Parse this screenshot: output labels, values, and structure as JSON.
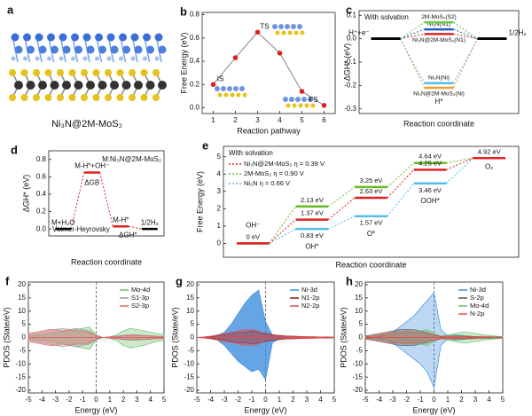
{
  "structure": {
    "label": "a",
    "caption": "Ni₃N@2M-MoS₂"
  },
  "chart_data": [
    {
      "panel": "b",
      "type": "line",
      "xlabel": "Reaction pathway",
      "ylabel": "Free Energy (eV)",
      "x": [
        1,
        2,
        3,
        4,
        5,
        6
      ],
      "values": [
        0.2,
        0.43,
        0.65,
        0.47,
        0.14,
        0.02
      ],
      "point_labels": [
        "IS",
        null,
        "TS",
        null,
        null,
        "FS"
      ],
      "color": "#e02020",
      "line_color": "#888888",
      "xlim": [
        0.5,
        6.5
      ],
      "xticks": [
        1,
        2,
        3,
        4,
        5,
        6
      ],
      "ylim": [
        -0.05,
        0.82
      ],
      "yticks": [
        {
          "value": 0,
          "label": "0.0"
        },
        0.2,
        0.4,
        0.6,
        0.8
      ]
    },
    {
      "panel": "c",
      "type": "step",
      "xlabel": "Reaction coordinate",
      "ylabel": "ΔGH* (eV)",
      "annotations": [
        "With solvation"
      ],
      "categories": [
        "H⁺+e⁻",
        "H*",
        "1/2H₂"
      ],
      "ylim": [
        -0.32,
        0.12
      ],
      "yticks": [
        -0.3,
        -0.2,
        -0.1,
        {
          "value": 0,
          "label": "0.0"
        },
        0.1
      ],
      "series": [
        {
          "name": "2M-MoS₂(S2)",
          "color": "#66cc44",
          "values": [
            0,
            0.07,
            0
          ]
        },
        {
          "name": "Ni₃N(N1)",
          "color": "#1f5fbf",
          "values": [
            0,
            0.04,
            0
          ]
        },
        {
          "name": "Ni₃N@2M-MoS₂(N1)",
          "color": "#d62728",
          "values": [
            0,
            0.02,
            0
          ]
        },
        {
          "name": "Ni₃N(Ni)",
          "color": "#55bde8",
          "values": [
            0,
            -0.19,
            0
          ]
        },
        {
          "name": "Ni₃N@2M-MoS₂(Ni)",
          "color": "#f0a030",
          "values": [
            0,
            -0.21,
            0
          ]
        }
      ]
    },
    {
      "panel": "d",
      "type": "step",
      "xlabel": "Reaction coordinate",
      "ylabel": "ΔGH* (eV)",
      "annotations": [
        "M:Ni₃N@2M-MoS₂",
        "Volmer-Heyrovsky",
        "ΔGB",
        "ΔGH*"
      ],
      "categories": [
        "M+H₂O",
        "M-H*+OH⁻",
        "M-H*",
        "1/2H₂"
      ],
      "values": [
        0,
        0.65,
        0.03,
        0
      ],
      "color": "#e02020",
      "ylim": [
        -0.08,
        0.9
      ],
      "yticks": [
        {
          "value": 0,
          "label": "0.0"
        },
        0.2,
        0.4,
        0.6,
        0.8
      ]
    },
    {
      "panel": "e",
      "type": "step",
      "xlabel": "Reaction coordinate",
      "ylabel": "Free Energy (eV)",
      "annotations": [
        "With solvation"
      ],
      "categories": [
        "OH⁻",
        "OH*",
        "O*",
        "OOH*",
        "O₂"
      ],
      "ylim": [
        -0.8,
        5.6
      ],
      "yticks": [
        0,
        1,
        2,
        3,
        4,
        5
      ],
      "legend": "upper left",
      "series": [
        {
          "name": "Ni₃N@2M-MoS₂ η = 0.39 V",
          "color": "#e02020",
          "values": [
            0,
            1.37,
            2.63,
            4.25,
            4.92
          ],
          "value_labels": [
            "0 eV",
            "1.37 eV",
            "2.63 eV",
            "4.25 eV",
            "4.92 eV"
          ]
        },
        {
          "name": "2M-MoS₂ η = 0.90 V",
          "color": "#66bb22",
          "values": [
            0,
            2.13,
            3.25,
            4.64,
            4.92
          ],
          "value_labels": [
            null,
            "2.13 eV",
            "3.25 eV",
            "4.64 eV",
            null
          ]
        },
        {
          "name": "Ni₃N η = 0.66 V",
          "color": "#55bde8",
          "values": [
            0,
            0.83,
            1.57,
            3.46,
            4.92
          ],
          "value_labels": [
            null,
            "0.83 eV",
            "1.57 eV",
            "3.46 eV",
            null
          ]
        }
      ]
    },
    {
      "panel": "f",
      "type": "area",
      "xlabel": "Energy (eV)",
      "ylabel": "PDOS (State/eV)",
      "legend": "upper right",
      "fermi_level": 0,
      "x": [
        -5,
        -4.5,
        -4,
        -3.5,
        -3,
        -2.5,
        -2,
        -1.5,
        -1,
        -0.5,
        0,
        0.5,
        1,
        1.5,
        2,
        2.5,
        3,
        3.5,
        4,
        4.5,
        5
      ],
      "xlim": [
        -5,
        5
      ],
      "xticks": [
        -5,
        -4,
        -3,
        -2,
        -1,
        0,
        1,
        2,
        3,
        4,
        5
      ],
      "ylim": [
        -21,
        21
      ],
      "yticks": [
        -20,
        -15,
        -10,
        -5,
        0,
        5,
        10,
        15,
        20
      ],
      "series": [
        {
          "name": "Mo-4d",
          "color": "#6abf69",
          "values": [
            0.5,
            0.8,
            1,
            1.5,
            1.8,
            2.2,
            2.5,
            3,
            3.5,
            4,
            1,
            0,
            0.3,
            1,
            2.5,
            3.5,
            3,
            2.5,
            2,
            1.5,
            1
          ],
          "down": [
            -0.5,
            -0.8,
            -1,
            -1.5,
            -2,
            -2.5,
            -3,
            -3.5,
            -4,
            -4.5,
            -1,
            0,
            -0.3,
            -1.2,
            -3,
            -4,
            -3.5,
            -3,
            -2.2,
            -1.5,
            -1
          ]
        },
        {
          "name": "S1-3p",
          "color": "#999999",
          "values": [
            1,
            1.5,
            2,
            2.5,
            3,
            3.5,
            3,
            3.5,
            3,
            2.5,
            0.8,
            0,
            0.2,
            0.5,
            0.8,
            1,
            1,
            0.8,
            0.7,
            0.5,
            0.4
          ],
          "down": [
            -1,
            -1.5,
            -2,
            -2.5,
            -3,
            -3.5,
            -3,
            -3.5,
            -3,
            -2.5,
            -0.8,
            0,
            -0.2,
            -0.5,
            -0.8,
            -1,
            -1,
            -0.8,
            -0.7,
            -0.5,
            -0.4
          ]
        },
        {
          "name": "S2-3p",
          "color": "#e06666",
          "values": [
            1.5,
            2,
            2.5,
            3,
            3,
            2.5,
            3,
            2.5,
            2.5,
            2,
            0.6,
            0,
            0.2,
            0.4,
            0.6,
            0.8,
            0.8,
            0.7,
            0.5,
            0.4,
            0.3
          ],
          "down": [
            -1.5,
            -2,
            -2.5,
            -3,
            -3,
            -2.5,
            -3,
            -2.5,
            -2.5,
            -2,
            -0.6,
            0,
            -0.2,
            -0.4,
            -0.6,
            -0.8,
            -0.8,
            -0.7,
            -0.5,
            -0.4,
            -0.3
          ]
        }
      ]
    },
    {
      "panel": "g",
      "type": "area",
      "xlabel": "Energy (eV)",
      "ylabel": "PDOS (State/eV)",
      "legend": "upper right",
      "fermi_level": 0,
      "x": [
        -5,
        -4.5,
        -4,
        -3.5,
        -3,
        -2.5,
        -2,
        -1.5,
        -1,
        -0.5,
        0,
        0.5,
        1,
        1.5,
        2,
        2.5,
        3,
        3.5,
        4,
        4.5,
        5
      ],
      "xlim": [
        -5,
        5
      ],
      "xticks": [
        -5,
        -4,
        -3,
        -2,
        -1,
        0,
        1,
        2,
        3,
        4,
        5
      ],
      "ylim": [
        -21,
        21
      ],
      "yticks": [
        -20,
        -15,
        -10,
        -5,
        0,
        5,
        10,
        15,
        20
      ],
      "series": [
        {
          "name": "Ni-3d",
          "color": "#3f8fdf",
          "values": [
            0,
            0,
            0.2,
            0.8,
            2,
            5,
            9,
            13,
            16,
            18,
            6,
            1,
            0.5,
            0.3,
            0.3,
            0.2,
            0.2,
            0.1,
            0.1,
            0.1,
            0
          ],
          "down": [
            0,
            0,
            -0.2,
            -1,
            -3,
            -6,
            -9,
            -11,
            -13,
            -12,
            -16,
            -2,
            -0.5,
            -0.3,
            -0.3,
            -0.2,
            -0.2,
            -0.1,
            -0.1,
            -0.1,
            0
          ]
        },
        {
          "name": "N1-2p",
          "color": "#7b1e1e",
          "values": [
            0,
            0.1,
            0.3,
            0.6,
            1,
            1.5,
            2,
            2,
            2.5,
            2,
            1.5,
            1,
            0.8,
            0.6,
            0.5,
            0.4,
            0.3,
            0.3,
            0.2,
            0.2,
            0.1
          ],
          "down": [
            0,
            -0.1,
            -0.3,
            -0.6,
            -1,
            -1.5,
            -2,
            -2,
            -2.5,
            -2,
            -1.5,
            -1,
            -0.8,
            -0.6,
            -0.5,
            -0.4,
            -0.3,
            -0.3,
            -0.2,
            -0.2,
            -0.1
          ]
        },
        {
          "name": "N2-2p",
          "color": "#e05050",
          "values": [
            0,
            0.2,
            0.5,
            1,
            1.5,
            2,
            2.5,
            3,
            3,
            2.5,
            1,
            0.8,
            0.6,
            0.5,
            0.4,
            0.3,
            0.3,
            0.2,
            0.2,
            0.1,
            0.1
          ],
          "down": [
            0,
            -0.2,
            -0.5,
            -1,
            -1.5,
            -2,
            -2.5,
            -3,
            -3,
            -2.5,
            -1,
            -0.8,
            -0.6,
            -0.5,
            -0.4,
            -0.3,
            -0.3,
            -0.2,
            -0.2,
            -0.1,
            -0.1
          ]
        }
      ]
    },
    {
      "panel": "h",
      "type": "area",
      "xlabel": "Energy (eV)",
      "ylabel": "PDOS (State/eV)",
      "legend": "upper right",
      "fermi_level": 0,
      "x": [
        -5,
        -4.5,
        -4,
        -3.5,
        -3,
        -2.5,
        -2,
        -1.5,
        -1,
        -0.5,
        0,
        0.5,
        1,
        1.5,
        2,
        2.5,
        3,
        3.5,
        4,
        4.5,
        5
      ],
      "xlim": [
        -5,
        5
      ],
      "xticks": [
        -5,
        -4,
        -3,
        -2,
        -1,
        0,
        1,
        2,
        3,
        4,
        5
      ],
      "ylim": [
        -21,
        21
      ],
      "yticks": [
        -20,
        -15,
        -10,
        -5,
        0,
        5,
        10,
        15,
        20
      ],
      "series": [
        {
          "name": "Ni-3d",
          "color": "#3f8fdf",
          "values": [
            0,
            0,
            0.3,
            1,
            2,
            4,
            6,
            8,
            11,
            14,
            17,
            3,
            0.5,
            1,
            0.8,
            0.5,
            0.3,
            0.2,
            0.1,
            0.1,
            0
          ],
          "down": [
            0,
            0,
            -0.3,
            -1,
            -2,
            -4,
            -6,
            -8,
            -10,
            -13,
            -19,
            -3,
            -0.5,
            -1,
            -0.8,
            -0.5,
            -0.3,
            -0.2,
            -0.1,
            -0.1,
            0
          ]
        },
        {
          "name": "S-2p",
          "color": "#555555",
          "values": [
            0.5,
            1,
            1.5,
            2,
            2.5,
            3,
            3,
            3,
            2.5,
            2,
            1,
            0.3,
            0.5,
            0.6,
            0.6,
            0.5,
            0.4,
            0.3,
            0.3,
            0.2,
            0.2
          ],
          "down": [
            -0.5,
            -1,
            -1.5,
            -2,
            -2.5,
            -3,
            -3,
            -3,
            -2.5,
            -2,
            -1,
            -0.3,
            -0.5,
            -0.6,
            -0.6,
            -0.5,
            -0.4,
            -0.3,
            -0.3,
            -0.2,
            -0.2
          ]
        },
        {
          "name": "Mo-4d",
          "color": "#6abf69",
          "values": [
            0.3,
            0.5,
            0.8,
            1,
            1.5,
            2,
            2,
            2.5,
            2.5,
            3,
            1.5,
            0.5,
            1,
            1.5,
            2,
            2,
            1.5,
            1,
            0.8,
            0.5,
            0.3
          ],
          "down": [
            -0.3,
            -0.5,
            -0.8,
            -1,
            -1.5,
            -2,
            -2,
            -2.5,
            -2.5,
            -3,
            -1.5,
            -0.5,
            -1,
            -1.5,
            -2,
            -2,
            -1.5,
            -1,
            -0.8,
            -0.5,
            -0.3
          ]
        },
        {
          "name": "N-2p",
          "color": "#e05050",
          "values": [
            0.2,
            0.5,
            1,
            1.5,
            2,
            2,
            2.5,
            2,
            2,
            1.5,
            1,
            0.5,
            0.4,
            0.3,
            0.3,
            0.2,
            0.2,
            0.2,
            0.1,
            0.1,
            0.1
          ],
          "down": [
            -0.2,
            -0.5,
            -1,
            -1.5,
            -2,
            -2,
            -2.5,
            -2,
            -2,
            -1.5,
            -1,
            -0.5,
            -0.4,
            -0.3,
            -0.3,
            -0.2,
            -0.2,
            -0.2,
            -0.1,
            -0.1,
            -0.1
          ]
        }
      ]
    }
  ]
}
